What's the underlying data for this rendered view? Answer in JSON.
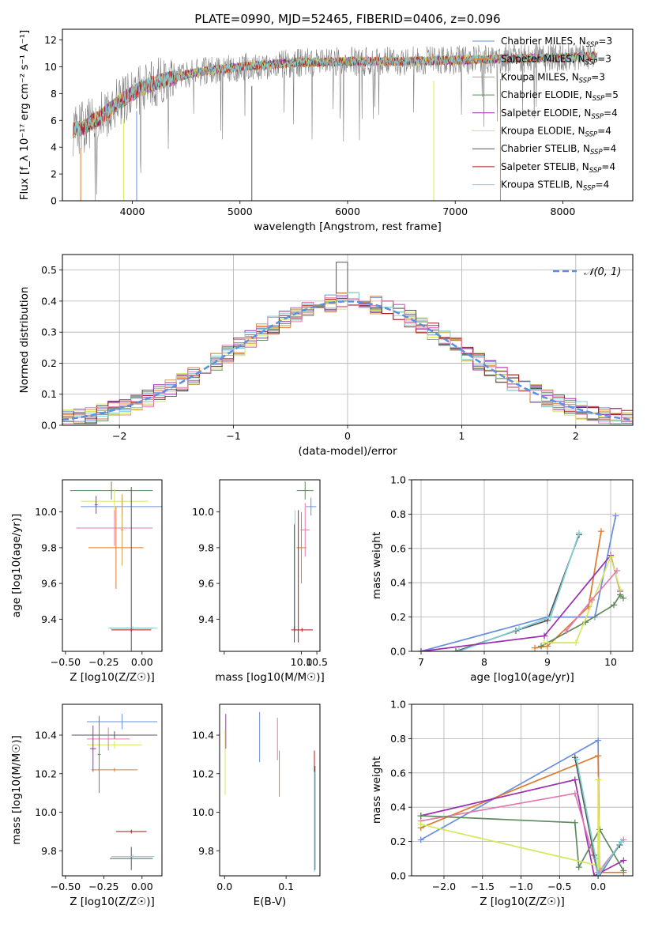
{
  "colors": {
    "Chabrier MILES": "#6a8fdc",
    "Salpeter MILES": "#df7a2b",
    "Kroupa MILES": "#c8a04a",
    "Chabrier ELODIE": "#5e8a5e",
    "Salpeter ELODIE": "#9a2fb0",
    "Kroupa ELODIE": "#d7e65a",
    "Chabrier STELIB": "#555555",
    "Salpeter STELIB": "#b01818",
    "Kroupa STELIB": "#7fd0d6",
    "pink": "#e27ab0",
    "normal": "#5b8fe0"
  },
  "chart_data": [
    {
      "id": "spectrum",
      "type": "line",
      "title": "PLATE=0990, MJD=52465, FIBERID=0406, z=0.096",
      "xlabel": "wavelength [Angstrom, rest frame]",
      "ylabel": "Flux [f_λ 10⁻¹⁷ erg cm⁻² s⁻¹ A⁻¹]",
      "xlim": [
        3350,
        8650
      ],
      "ylim": [
        0,
        12.8
      ],
      "xticks": [
        4000,
        5000,
        6000,
        7000,
        8000
      ],
      "yticks": [
        0,
        2,
        4,
        6,
        8,
        10,
        12
      ],
      "grid": false,
      "legend_position": "right",
      "legend": [
        {
          "name": "Chabrier MILES",
          "sub": "SSP",
          "n": "3"
        },
        {
          "name": "Salpeter MILES",
          "sub": "SSP",
          "n": "3"
        },
        {
          "name": "Kroupa MILES",
          "sub": "SSP",
          "n": "3"
        },
        {
          "name": "Chabrier ELODIE",
          "sub": "SSP",
          "n": "5"
        },
        {
          "name": "Salpeter ELODIE",
          "sub": "SSP",
          "n": "4"
        },
        {
          "name": "Kroupa ELODIE",
          "sub": "SSP",
          "n": "4"
        },
        {
          "name": "Chabrier STELIB",
          "sub": "SSP",
          "n": "4"
        },
        {
          "name": "Salpeter STELIB",
          "sub": "SSP",
          "n": "4"
        },
        {
          "name": "Kroupa STELIB",
          "sub": "SSP",
          "n": "4"
        }
      ],
      "data_anchor": {
        "x": [
          3450,
          3550,
          3700,
          3900,
          4100,
          4300,
          4600,
          5000,
          5500,
          6000,
          6500,
          7000,
          7500,
          8000,
          8300
        ],
        "y": [
          5.3,
          5.5,
          6.2,
          7.5,
          8.5,
          9.0,
          9.6,
          10.0,
          10.3,
          10.4,
          10.4,
          10.5,
          10.6,
          10.7,
          10.8
        ]
      },
      "cutoffs": [
        {
          "series": "Salpeter MILES",
          "x": 3520
        },
        {
          "series": "Salpeter MILES",
          "x": 7420
        },
        {
          "series": "Kroupa ELODIE",
          "x": 3920
        },
        {
          "series": "Kroupa ELODIE",
          "x": 6800
        },
        {
          "series": "Chabrier MILES",
          "x": 4040
        },
        {
          "series": "Chabrier STELIB",
          "x": 5110
        }
      ]
    },
    {
      "id": "residuals",
      "type": "histogram",
      "xlabel": "(data-model)/error",
      "ylabel": "Normed distribution",
      "xlim": [
        -2.5,
        2.5
      ],
      "ylim": [
        0,
        0.55
      ],
      "xticks": [
        -2,
        -1,
        0,
        1,
        2
      ],
      "yticks": [
        0.0,
        0.1,
        0.2,
        0.3,
        0.4,
        0.5
      ],
      "grid": true,
      "legend_position": "upper right",
      "legend": [
        {
          "name": "𝒩(0, 1)"
        }
      ],
      "bin_edges_step": 0.1,
      "mean_profile": "normal(0,1)",
      "noise_amplitude": 0.03,
      "spike": {
        "x": -0.05,
        "value": 0.525
      }
    },
    {
      "id": "age_vs_Z",
      "type": "errorbar",
      "xlabel": "Z [log10(Z/Z☉)]",
      "ylabel": "age  [log10(age/yr)]",
      "xlim": [
        -0.52,
        0.13
      ],
      "ylim": [
        9.22,
        10.18
      ],
      "xticks": [
        -0.5,
        -0.25,
        0.0
      ],
      "yticks": [
        9.4,
        9.6,
        9.8,
        10.0
      ],
      "grid": false,
      "points": [
        {
          "series": "Chabrier ELODIE",
          "x": -0.2,
          "xerr": 0.27,
          "y": 10.12,
          "yerr": 0.05
        },
        {
          "series": "Chabrier MILES",
          "x": -0.13,
          "xerr": 0.27,
          "y": 10.03,
          "yerr": 0.05
        },
        {
          "series": "Kroupa ELODIE",
          "x": -0.18,
          "xerr": 0.22,
          "y": 10.06,
          "yerr": 0.07
        },
        {
          "series": "pink",
          "x": -0.18,
          "xerr": 0.25,
          "y": 9.91,
          "yerr": 0.1
        },
        {
          "series": "Salpeter ELODIE",
          "x": -0.3,
          "xerr": 0.01,
          "y": 10.04,
          "yerr": 0.05
        },
        {
          "series": "Salpeter MILES",
          "x": -0.17,
          "xerr": 0.18,
          "y": 9.8,
          "yerr": 0.23
        },
        {
          "series": "Chabrier STELIB",
          "x": -0.07,
          "xerr": 0.14,
          "y": 9.35,
          "yerr": 0.79
        },
        {
          "series": "Kroupa STELIB",
          "x": -0.06,
          "xerr": 0.16,
          "y": 9.35,
          "yerr": 0.01
        },
        {
          "series": "Salpeter STELIB",
          "x": -0.07,
          "xerr": 0.13,
          "y": 9.34,
          "yerr": 0.01
        },
        {
          "series": "Kroupa MILES",
          "x": -0.13,
          "xerr": 0.01,
          "y": 9.9,
          "yerr": 0.2
        }
      ]
    },
    {
      "id": "age_vs_mass",
      "type": "errorbar",
      "xlabel": "mass [log10(M/M☉)]",
      "ylabel": "",
      "xlim": [
        7.35,
        10.6
      ],
      "ylim": [
        9.22,
        10.18
      ],
      "xticks": [
        7.5,
        10.0,
        10.5
      ],
      "xticklabels": [
        "",
        "10.0",
        "10.5"
      ],
      "xticks_major": [
        10.0,
        10.5
      ],
      "yticks": [
        9.4,
        9.6,
        9.8,
        10.0
      ],
      "grid": false,
      "points": [
        {
          "series": "Chabrier ELODIE",
          "x": 10.12,
          "xerr": 0.27,
          "y": 10.12,
          "yerr": 0.05
        },
        {
          "series": "Chabrier MILES",
          "x": 10.31,
          "xerr": 0.17,
          "y": 10.03,
          "yerr": 0.05
        },
        {
          "series": "pink",
          "x": 10.12,
          "xerr": 0.15,
          "y": 9.9,
          "yerr": 0.15
        },
        {
          "series": "Salpeter MILES",
          "x": 10.0,
          "xerr": 0.16,
          "y": 9.8,
          "yerr": 0.2
        },
        {
          "series": "Chabrier STELIB",
          "x": 9.77,
          "xerr": 0.01,
          "y": 9.6,
          "yerr": 0.33
        },
        {
          "series": "Kroupa STELIB",
          "x": 9.79,
          "xerr": 0.01,
          "y": 9.67,
          "yerr": 0.34
        },
        {
          "series": "Salpeter STELIB",
          "x": 9.9,
          "xerr": 0.01,
          "y": 9.64,
          "yerr": 0.37
        },
        {
          "series": "Salpeter STELIB",
          "x": 10.02,
          "xerr": 0.35,
          "y": 9.34,
          "yerr": 0.01
        },
        {
          "series": "Chabrier STELIB",
          "x": 9.77,
          "xerr": 0.02,
          "y": 9.35,
          "yerr": 0.01
        }
      ]
    },
    {
      "id": "weight_vs_age",
      "type": "line",
      "xlabel": "age  [log10(age/yr)]",
      "ylabel": "mass weight",
      "xlim": [
        6.85,
        10.35
      ],
      "ylim": [
        0,
        1.0
      ],
      "xticks": [
        7,
        8,
        9,
        10
      ],
      "yticks": [
        0.0,
        0.2,
        0.4,
        0.6,
        0.8,
        1.0
      ],
      "grid": true,
      "series": [
        {
          "series": "Chabrier MILES",
          "x": [
            7.0,
            9.0,
            9.75,
            10.08
          ],
          "y": [
            0.0,
            0.2,
            0.2,
            0.79
          ]
        },
        {
          "series": "Salpeter MILES",
          "x": [
            8.8,
            9.0,
            9.65,
            9.85
          ],
          "y": [
            0.02,
            0.03,
            0.26,
            0.7
          ]
        },
        {
          "series": "Chabrier STELIB",
          "x": [
            7.55,
            8.5,
            9.0,
            9.5
          ],
          "y": [
            0.0,
            0.12,
            0.18,
            0.68
          ]
        },
        {
          "series": "Kroupa STELIB",
          "x": [
            7.6,
            8.55,
            9.05,
            9.5
          ],
          "y": [
            0.0,
            0.13,
            0.2,
            0.69
          ]
        },
        {
          "series": "Salpeter ELODIE",
          "x": [
            7.0,
            8.95,
            10.0,
            10.15
          ],
          "y": [
            0.0,
            0.09,
            0.56,
            0.35
          ]
        },
        {
          "series": "Chabrier ELODIE",
          "x": [
            8.9,
            9.6,
            10.05,
            10.15,
            10.2
          ],
          "y": [
            0.03,
            0.17,
            0.27,
            0.33,
            0.31
          ]
        },
        {
          "series": "Kroupa ELODIE",
          "x": [
            8.95,
            9.45,
            10.0,
            10.15
          ],
          "y": [
            0.05,
            0.05,
            0.55,
            0.36
          ]
        },
        {
          "series": "pink",
          "x": [
            9.3,
            9.7,
            10.1
          ],
          "y": [
            0.12,
            0.3,
            0.47
          ]
        }
      ]
    },
    {
      "id": "mass_vs_Z",
      "type": "errorbar",
      "xlabel": "Z [log10(Z/Z☉)]",
      "ylabel": "mass [log10(M/M☉)]",
      "xlim": [
        -0.52,
        0.13
      ],
      "ylim": [
        9.67,
        10.56
      ],
      "xticks": [
        -0.5,
        -0.25,
        0.0
      ],
      "yticks": [
        9.8,
        10.0,
        10.2,
        10.4
      ],
      "grid": false,
      "points": [
        {
          "series": "Chabrier MILES",
          "x": -0.13,
          "xerr": 0.23,
          "y": 10.47,
          "yerr": 0.04
        },
        {
          "series": "Chabrier STELIB",
          "x": -0.18,
          "xerr": 0.28,
          "y": 10.4,
          "yerr": 0.02
        },
        {
          "series": "Kroupa ELODIE",
          "x": -0.18,
          "xerr": 0.18,
          "y": 10.35,
          "yerr": 0.02
        },
        {
          "series": "pink",
          "x": -0.22,
          "xerr": 0.14,
          "y": 10.38,
          "yerr": 0.06
        },
        {
          "series": "Salpeter ELODIE",
          "x": -0.32,
          "xerr": 0.02,
          "y": 10.33,
          "yerr": 0.12
        },
        {
          "series": "Chabrier ELODIE",
          "x": -0.28,
          "xerr": 0.01,
          "y": 10.3,
          "yerr": 0.2
        },
        {
          "series": "Salpeter MILES",
          "x": -0.18,
          "xerr": 0.15,
          "y": 10.22,
          "yerr": 0.01
        },
        {
          "series": "Salpeter STELIB",
          "x": -0.07,
          "xerr": 0.1,
          "y": 9.9,
          "yerr": 0.01
        },
        {
          "series": "Chabrier STELIB",
          "x": -0.07,
          "xerr": 0.14,
          "y": 9.76,
          "yerr": 0.06
        },
        {
          "series": "Kroupa STELIB",
          "x": -0.06,
          "xerr": 0.14,
          "y": 9.77,
          "yerr": 0.01
        }
      ]
    },
    {
      "id": "mass_vs_EBV",
      "type": "errorbar",
      "xlabel": "E(B-V)",
      "ylabel": "",
      "xlim": [
        -0.008,
        0.155
      ],
      "ylim": [
        9.67,
        10.56
      ],
      "xticks": [
        0.0,
        0.1
      ],
      "yticks": [
        9.8,
        10.0,
        10.2,
        10.4
      ],
      "grid": false,
      "points": [
        {
          "series": "Salpeter ELODIE",
          "x": 0.002,
          "xerr": 0,
          "y": 10.42,
          "yerr": 0.09
        },
        {
          "series": "Kroupa ELODIE",
          "x": 0.001,
          "xerr": 0,
          "y": 10.26,
          "yerr": 0.17
        },
        {
          "series": "Chabrier MILES",
          "x": 0.057,
          "xerr": 0,
          "y": 10.39,
          "yerr": 0.13
        },
        {
          "series": "pink",
          "x": 0.086,
          "xerr": 0,
          "y": 10.38,
          "yerr": 0.11
        },
        {
          "series": "Salpeter MILES",
          "x": 0.089,
          "xerr": 0,
          "y": 10.2,
          "yerr": 0.12
        },
        {
          "series": "Salpeter STELIB",
          "x": 0.146,
          "xerr": 0,
          "y": 10.2,
          "yerr": 0.12
        },
        {
          "series": "Chabrier STELIB",
          "x": 0.147,
          "xerr": 0,
          "y": 9.97,
          "yerr": 0.27
        },
        {
          "series": "Kroupa STELIB",
          "x": 0.146,
          "xerr": 0,
          "y": 9.95,
          "yerr": 0.26
        }
      ]
    },
    {
      "id": "weight_vs_Z",
      "type": "line",
      "xlabel": "Z [log10(Z/Z☉)]",
      "ylabel": "mass weight",
      "xlim": [
        -2.42,
        0.45
      ],
      "ylim": [
        0,
        1.0
      ],
      "xticks": [
        -2.0,
        -1.5,
        -1.0,
        -0.5,
        0.0
      ],
      "yticks": [
        0.0,
        0.2,
        0.4,
        0.6,
        0.8,
        1.0
      ],
      "grid": true,
      "series": [
        {
          "series": "Chabrier MILES",
          "x": [
            -2.3,
            0.0,
            0.02,
            0.3
          ],
          "y": [
            0.21,
            0.79,
            0.0,
            0.2
          ]
        },
        {
          "series": "Salpeter MILES",
          "x": [
            -2.3,
            0.0,
            0.02,
            0.33
          ],
          "y": [
            0.28,
            0.7,
            0.02,
            0.02
          ]
        },
        {
          "series": "Salpeter ELODIE",
          "x": [
            -2.3,
            -0.3,
            -0.05,
            0.33
          ],
          "y": [
            0.35,
            0.56,
            0.0,
            0.09
          ]
        },
        {
          "series": "pink",
          "x": [
            -2.3,
            -0.3,
            0.0,
            0.33
          ],
          "y": [
            0.32,
            0.48,
            0.02,
            0.21
          ]
        },
        {
          "series": "Chabrier ELODIE",
          "x": [
            -2.3,
            -0.3,
            -0.25,
            0.02,
            0.33
          ],
          "y": [
            0.35,
            0.31,
            0.05,
            0.27,
            0.03
          ]
        },
        {
          "series": "Kroupa ELODIE",
          "x": [
            -2.3,
            0.0,
            0.0,
            0.02
          ],
          "y": [
            0.3,
            0.06,
            0.56,
            0.05
          ]
        },
        {
          "series": "Chabrier STELIB",
          "x": [
            -0.3,
            -0.05,
            0.0,
            0.28
          ],
          "y": [
            0.69,
            0.12,
            0.0,
            0.18
          ]
        },
        {
          "series": "Kroupa STELIB",
          "x": [
            -0.28,
            -0.03,
            0.0,
            0.3
          ],
          "y": [
            0.68,
            0.1,
            0.0,
            0.2
          ]
        }
      ]
    }
  ]
}
